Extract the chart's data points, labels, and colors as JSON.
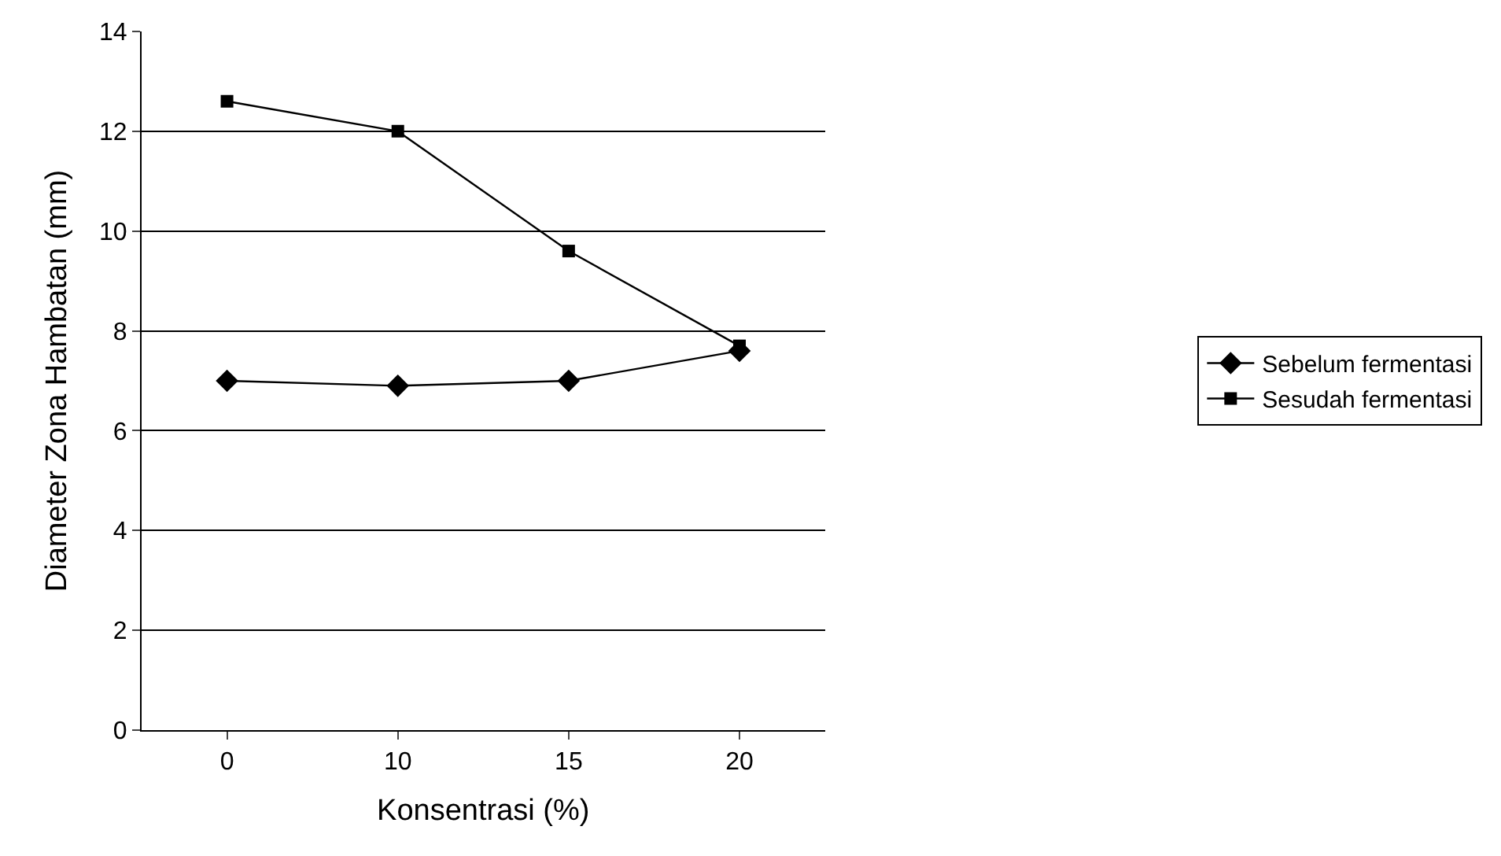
{
  "chart_data": {
    "type": "line",
    "xlabel": "Konsentrasi (%)",
    "ylabel": "Diameter Zona Hambatan (mm)",
    "categories": [
      "0",
      "10",
      "15",
      "20"
    ],
    "series": [
      {
        "name": "Sebelum fermentasi",
        "color": "#000000",
        "marker": "diamond",
        "values": [
          7.0,
          6.9,
          7.0,
          7.6
        ]
      },
      {
        "name": "Sesudah fermentasi",
        "color": "#000000",
        "marker": "square",
        "values": [
          12.6,
          12.0,
          9.6,
          7.7
        ]
      }
    ],
    "ylim": [
      0,
      14
    ],
    "yticks": [
      0,
      2,
      4,
      6,
      8,
      10,
      12,
      14
    ],
    "grid": "y",
    "legend": "right",
    "line_style": "solid"
  }
}
